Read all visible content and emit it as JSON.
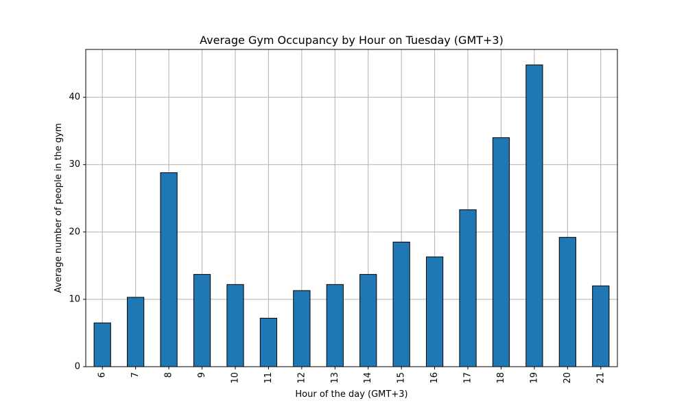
{
  "chart_data": {
    "type": "bar",
    "title": "Average Gym Occupancy by Hour on Tuesday (GMT+3)",
    "xlabel": "Hour of the day (GMT+3)",
    "ylabel": "Average number of people in the gym",
    "categories": [
      "6",
      "7",
      "8",
      "9",
      "10",
      "11",
      "12",
      "13",
      "14",
      "15",
      "16",
      "17",
      "18",
      "19",
      "20",
      "21"
    ],
    "values": [
      6.5,
      10.3,
      28.8,
      13.7,
      12.2,
      7.2,
      11.3,
      12.2,
      13.7,
      18.5,
      16.3,
      23.3,
      34.0,
      44.8,
      19.2,
      12.0
    ],
    "ylim": [
      0,
      47.1
    ],
    "yticks": [
      0,
      10,
      20,
      30,
      40
    ],
    "grid": true,
    "x_tick_rotation": "vertical",
    "colors": {
      "bar_fill": "#1f77b4",
      "bar_edge": "#000000",
      "grid": "#b0b0b0"
    }
  }
}
